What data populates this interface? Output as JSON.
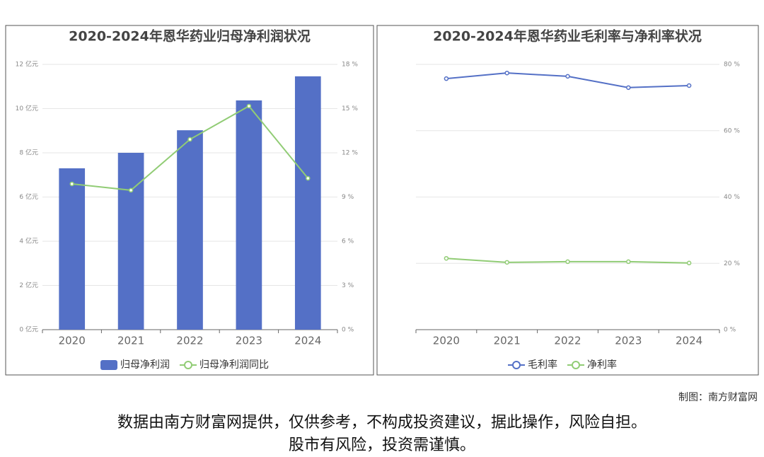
{
  "chart_data": [
    {
      "type": "bar",
      "title": "2020-2024年恩华药业归母净利润状况",
      "categories": [
        "2020",
        "2021",
        "2022",
        "2023",
        "2024"
      ],
      "series": [
        {
          "name": "归母净利润",
          "type": "bar",
          "color": "#5470c6",
          "values": [
            7.3,
            8.0,
            9.02,
            10.37,
            11.46
          ]
        },
        {
          "name": "归母净利润同比",
          "type": "line",
          "axis": "y2",
          "color": "#91cc75",
          "values": [
            9.89,
            9.46,
            12.91,
            15.17,
            10.27
          ]
        }
      ],
      "ylim": [
        0,
        12
      ],
      "yticks": [
        {
          "value": 0,
          "label": "0 亿元"
        },
        {
          "value": 2,
          "label": "2 亿元"
        },
        {
          "value": 4,
          "label": "4 亿元"
        },
        {
          "value": 6,
          "label": "6 亿元"
        },
        {
          "value": 8,
          "label": "8 亿元"
        },
        {
          "value": 10,
          "label": "10 亿元"
        },
        {
          "value": 12,
          "label": "12 亿元"
        }
      ],
      "y2lim": [
        0,
        18
      ],
      "y2ticks": [
        {
          "value": 0,
          "label": "0 %"
        },
        {
          "value": 3,
          "label": "3 %"
        },
        {
          "value": 6,
          "label": "6 %"
        },
        {
          "value": 9,
          "label": "9 %"
        },
        {
          "value": 12,
          "label": "12 %"
        },
        {
          "value": 15,
          "label": "15 %"
        },
        {
          "value": 18,
          "label": "18 %"
        }
      ],
      "grid": true
    },
    {
      "type": "line",
      "title": "2020-2024年恩华药业毛利率与净利率状况",
      "categories": [
        "2020",
        "2021",
        "2022",
        "2023",
        "2024"
      ],
      "series": [
        {
          "name": "毛利率",
          "type": "line",
          "color": "#5470c6",
          "values": [
            75.7,
            77.4,
            76.4,
            73.0,
            73.6
          ]
        },
        {
          "name": "净利率",
          "type": "line",
          "color": "#91cc75",
          "values": [
            21.5,
            20.3,
            20.5,
            20.5,
            20.1
          ]
        }
      ],
      "y_axis_side": "right",
      "ylim": [
        0,
        80
      ],
      "yticks": [
        {
          "value": 0,
          "label": "0 %"
        },
        {
          "value": 20,
          "label": "20 %"
        },
        {
          "value": 40,
          "label": "40 %"
        },
        {
          "value": 60,
          "label": "60 %"
        },
        {
          "value": 80,
          "label": "80 %"
        }
      ],
      "grid": true
    }
  ],
  "footer": {
    "credit": "制图：南方财富网",
    "disclaimer": [
      "数据由南方财富网提供，仅供参考，不构成投资建议，据此操作，风险自担。",
      "股市有风险，投资需谨慎。"
    ]
  }
}
